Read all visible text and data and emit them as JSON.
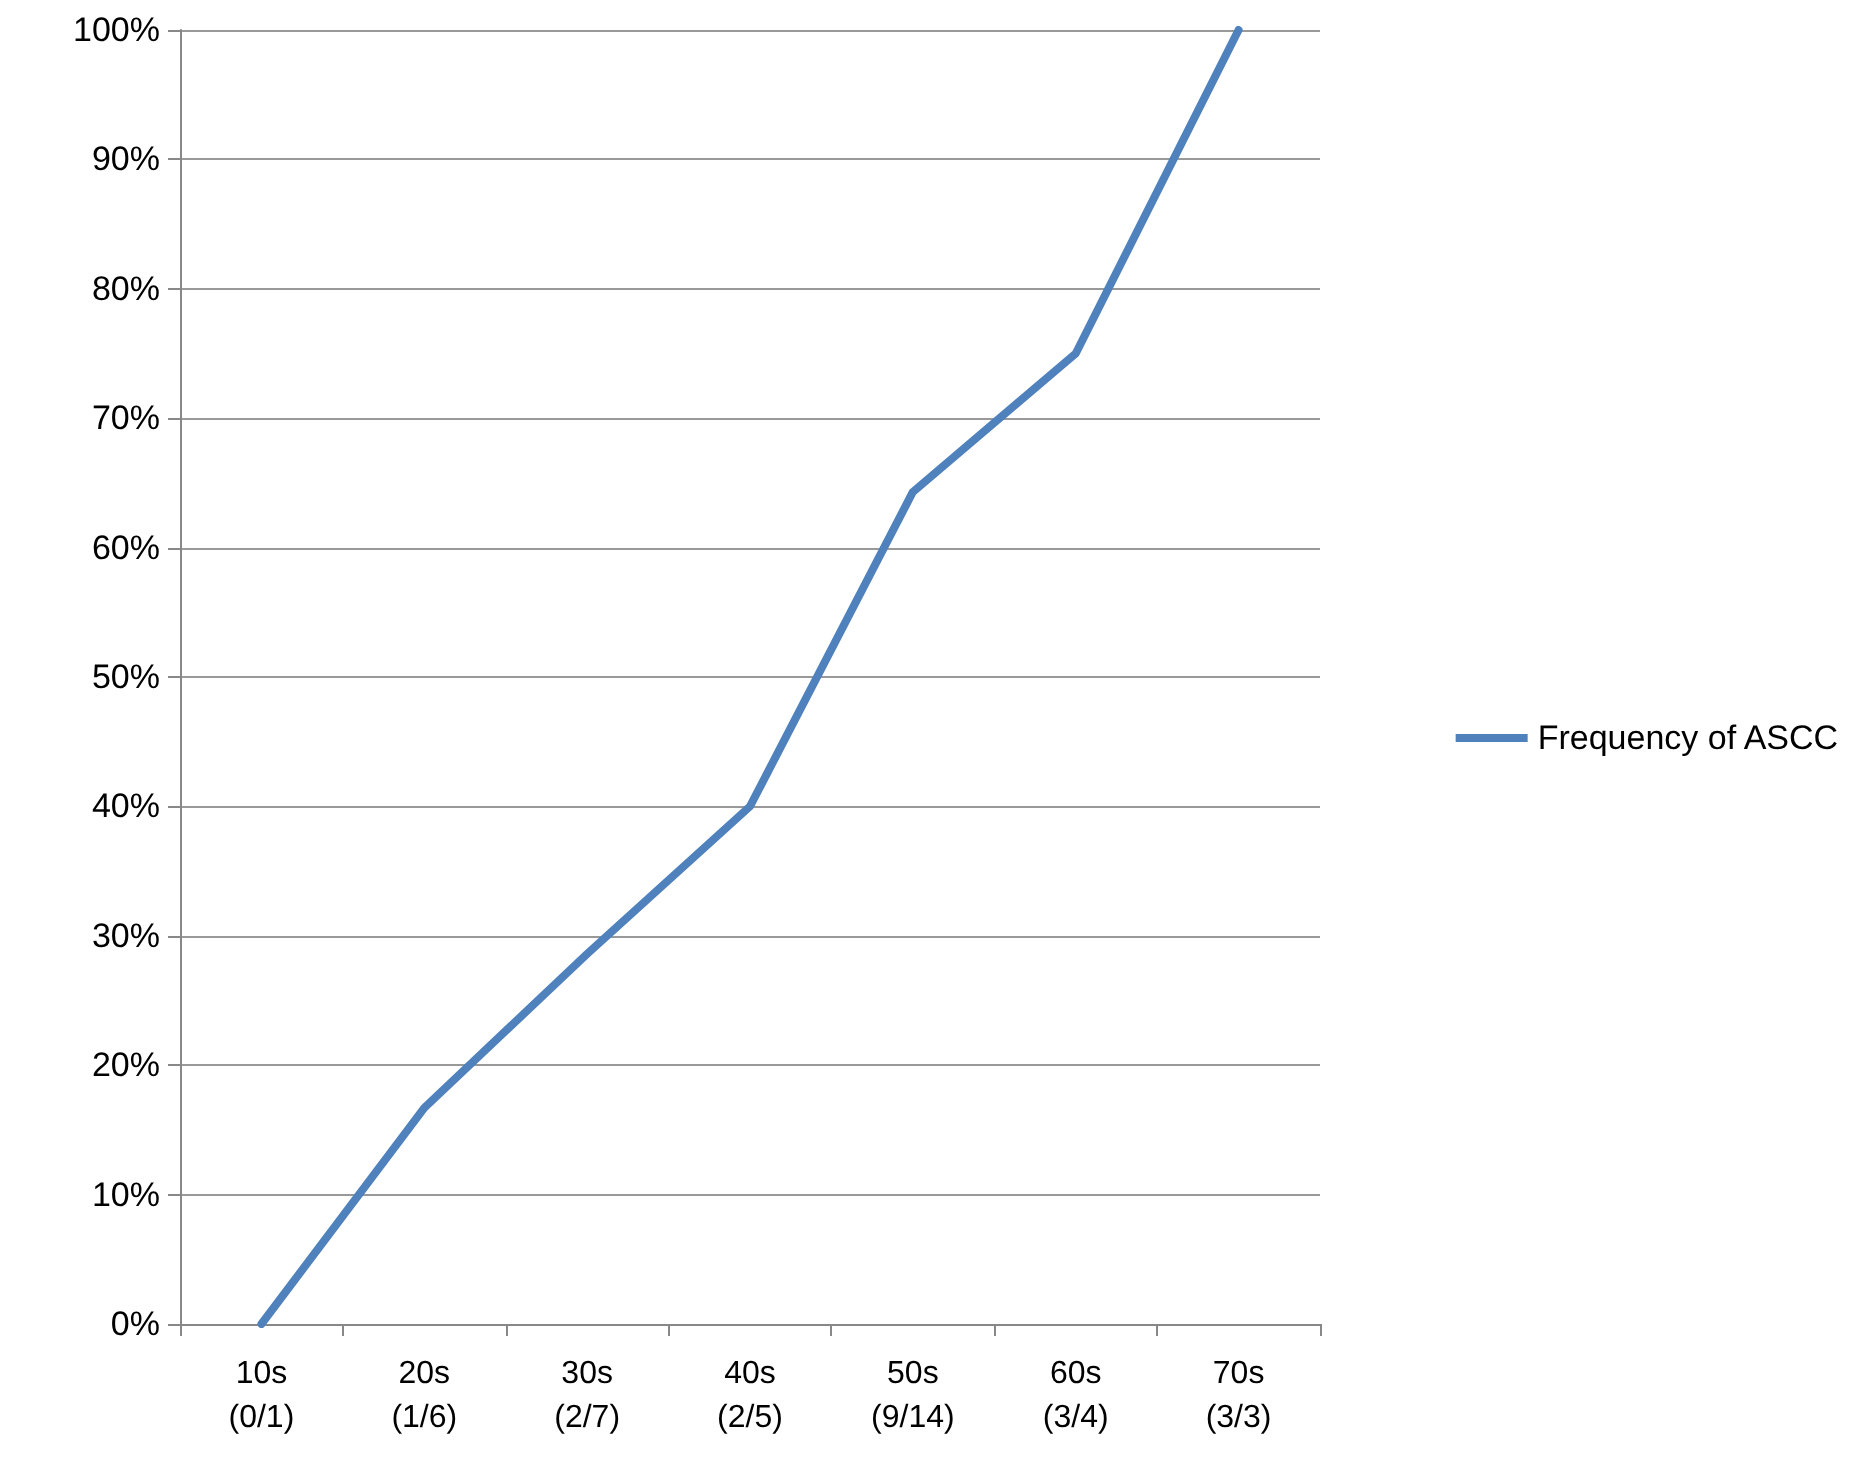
{
  "chart_data": {
    "type": "line",
    "categories": [
      "10s\n(0/1)",
      "20s\n(1/6)",
      "30s\n(2/7)",
      "40s\n(2/5)",
      "50s\n(9/14)",
      "60s\n(3/4)",
      "70s\n(3/3)"
    ],
    "series": [
      {
        "name": "Frequency of ASCC",
        "color": "#4f81bd",
        "values": [
          0,
          16.7,
          28.6,
          40,
          64.3,
          75,
          100
        ]
      }
    ],
    "ylim": [
      0,
      100
    ],
    "yticks": [
      {
        "value": 0,
        "label": "0%"
      },
      {
        "value": 10,
        "label": "10%"
      },
      {
        "value": 20,
        "label": "20%"
      },
      {
        "value": 30,
        "label": "30%"
      },
      {
        "value": 40,
        "label": "40%"
      },
      {
        "value": 50,
        "label": "50%"
      },
      {
        "value": 60,
        "label": "60%"
      },
      {
        "value": 70,
        "label": "70%"
      },
      {
        "value": 80,
        "label": "80%"
      },
      {
        "value": 90,
        "label": "90%"
      },
      {
        "value": 100,
        "label": "100%"
      }
    ],
    "grid": "y",
    "legend": "right",
    "marker": "none",
    "line_style": "solid"
  }
}
